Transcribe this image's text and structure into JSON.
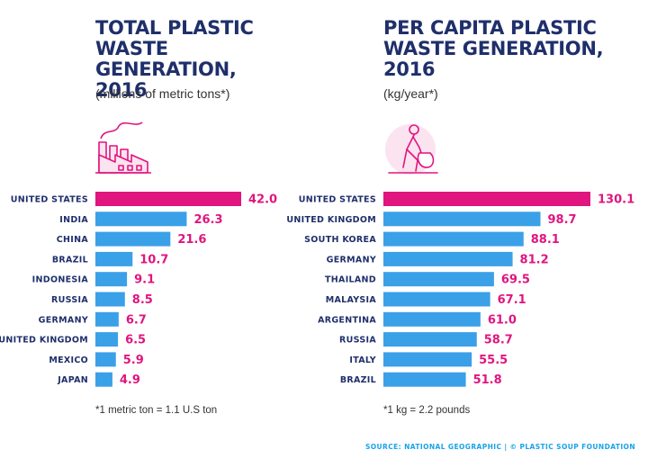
{
  "colors": {
    "highlight": "#e0157f",
    "bar": "#3aa0e8",
    "title": "#1f2f6b",
    "value": "#e0157f",
    "source": "#1aa3e8"
  },
  "icons": {
    "left": "factory-icon",
    "right": "person-carrying-trash-bag-icon"
  },
  "left": {
    "title_lines": [
      "TOTAL PLASTIC",
      "WASTE GENERATION,",
      "2016"
    ],
    "subtitle": "(millions of metric tons*)",
    "footnote": "*1 metric ton = 1.1 U.S ton"
  },
  "right": {
    "title_lines": [
      "PER CAPITA PLASTIC",
      "WASTE GENERATION,",
      "2016"
    ],
    "subtitle": "(kg/year*)",
    "footnote": "*1 kg = 2.2 pounds"
  },
  "source": {
    "text": "SOURCE: NATIONAL GEOGRAPHIC",
    "separator": "|",
    "org": "© PLASTIC SOUP FOUNDATION"
  },
  "chart_data": [
    {
      "type": "bar",
      "orientation": "horizontal",
      "title": "TOTAL PLASTIC WASTE GENERATION, 2016",
      "subtitle": "(millions of metric tons*)",
      "categories": [
        "UNITED STATES",
        "INDIA",
        "CHINA",
        "BRAZIL",
        "INDONESIA",
        "RUSSIA",
        "GERMANY",
        "UNITED KINGDOM",
        "MEXICO",
        "JAPAN"
      ],
      "values": [
        42.0,
        26.3,
        21.6,
        10.7,
        9.1,
        8.5,
        6.7,
        6.5,
        5.9,
        4.9
      ],
      "value_labels": [
        "42.0",
        "26.3",
        "21.6",
        "10.7",
        "9.1",
        "8.5",
        "6.7",
        "6.5",
        "5.9",
        "4.9"
      ],
      "highlight_index": 0,
      "xlim": [
        0,
        42.0
      ],
      "grid": false
    },
    {
      "type": "bar",
      "orientation": "horizontal",
      "title": "PER CAPITA PLASTIC WASTE GENERATION, 2016",
      "subtitle": "(kg/year*)",
      "categories": [
        "UNITED STATES",
        "UNITED KINGDOM",
        "SOUTH KOREA",
        "GERMANY",
        "THAILAND",
        "MALAYSIA",
        "ARGENTINA",
        "RUSSIA",
        "ITALY",
        "BRAZIL"
      ],
      "values": [
        130.1,
        98.7,
        88.1,
        81.2,
        69.5,
        67.1,
        61.0,
        58.7,
        55.5,
        51.8
      ],
      "value_labels": [
        "130.1",
        "98.7",
        "88.1",
        "81.2",
        "69.5",
        "67.1",
        "61.0",
        "58.7",
        "55.5",
        "51.8"
      ],
      "highlight_index": 0,
      "xlim": [
        0,
        130.1
      ],
      "grid": false
    }
  ]
}
